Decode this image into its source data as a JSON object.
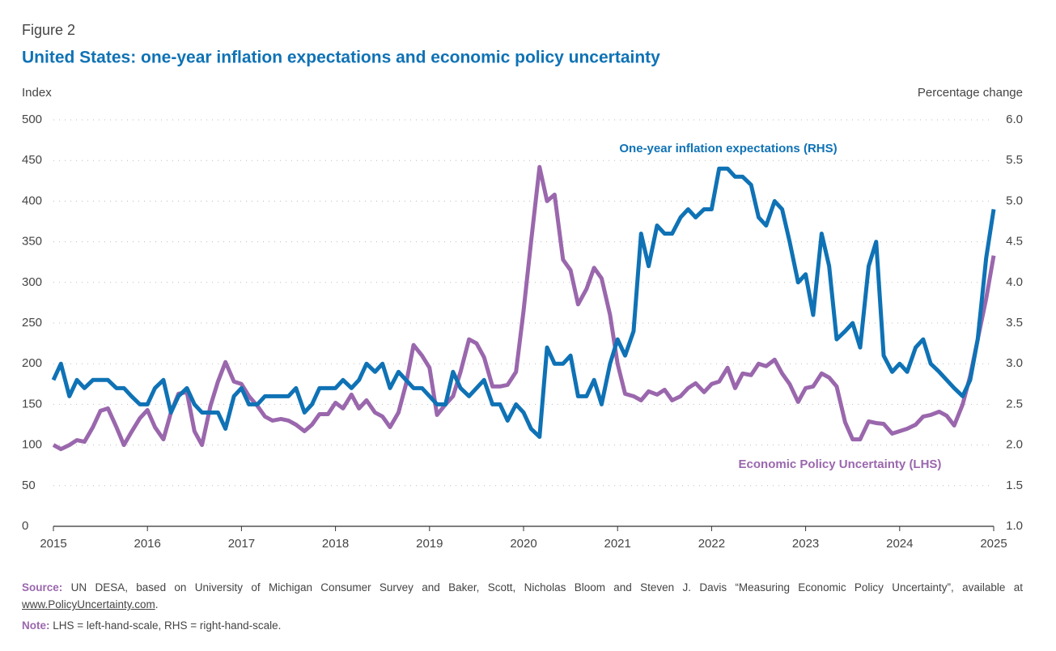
{
  "chart_data": {
    "type": "line",
    "figure_label": "Figure 2",
    "title": "United States: one-year inflation expectations and economic policy uncertainty",
    "ylabel": "Index",
    "y2label": "Percentage change",
    "xlim": [
      2015,
      2025
    ],
    "xticks": [
      2015,
      2016,
      2017,
      2018,
      2019,
      2020,
      2021,
      2022,
      2023,
      2024,
      2025
    ],
    "ylim": [
      0,
      500
    ],
    "yticks": [
      0,
      50,
      100,
      150,
      200,
      250,
      300,
      350,
      400,
      450,
      500
    ],
    "y2lim": [
      1,
      6
    ],
    "y2ticks": [
      {
        "value": 1,
        "label": "1.0"
      },
      {
        "value": 1.5,
        "label": "1.5"
      },
      {
        "value": 2,
        "label": "2.0"
      },
      {
        "value": 2.5,
        "label": "2.5"
      },
      {
        "value": 3,
        "label": "3.0"
      },
      {
        "value": 3.5,
        "label": "3.5"
      },
      {
        "value": 4,
        "label": "4.0"
      },
      {
        "value": 4.5,
        "label": "4.5"
      },
      {
        "value": 5,
        "label": "5.0"
      },
      {
        "value": 5.5,
        "label": "5.5"
      },
      {
        "value": 6,
        "label": "6.0"
      }
    ],
    "grid": true,
    "x": [
      2015,
      2015.08,
      2015.17,
      2015.25,
      2015.33,
      2015.42,
      2015.5,
      2015.58,
      2015.67,
      2015.75,
      2015.83,
      2015.92,
      2016,
      2016.08,
      2016.17,
      2016.25,
      2016.33,
      2016.42,
      2016.5,
      2016.58,
      2016.67,
      2016.75,
      2016.83,
      2016.92,
      2017,
      2017.08,
      2017.17,
      2017.25,
      2017.33,
      2017.42,
      2017.5,
      2017.58,
      2017.67,
      2017.75,
      2017.83,
      2017.92,
      2018,
      2018.08,
      2018.17,
      2018.25,
      2018.33,
      2018.42,
      2018.5,
      2018.58,
      2018.67,
      2018.75,
      2018.83,
      2018.92,
      2019,
      2019.08,
      2019.17,
      2019.25,
      2019.33,
      2019.42,
      2019.5,
      2019.58,
      2019.67,
      2019.75,
      2019.83,
      2019.92,
      2020,
      2020.08,
      2020.17,
      2020.25,
      2020.33,
      2020.42,
      2020.5,
      2020.58,
      2020.67,
      2020.75,
      2020.83,
      2020.92,
      2021,
      2021.08,
      2021.17,
      2021.25,
      2021.33,
      2021.42,
      2021.5,
      2021.58,
      2021.67,
      2021.75,
      2021.83,
      2021.92,
      2022,
      2022.08,
      2022.17,
      2022.25,
      2022.33,
      2022.42,
      2022.5,
      2022.58,
      2022.67,
      2022.75,
      2022.83,
      2022.92,
      2023,
      2023.08,
      2023.17,
      2023.25,
      2023.33,
      2023.42,
      2023.5,
      2023.58,
      2023.67,
      2023.75,
      2023.83,
      2023.92,
      2024,
      2024.08,
      2024.17,
      2024.25,
      2024.33,
      2024.42,
      2024.5,
      2024.58,
      2024.67,
      2024.75,
      2024.83,
      2024.92,
      2025
    ],
    "series": [
      {
        "name": "One-year inflation expectations (RHS)",
        "color": "#0f72b5",
        "axis": "y2",
        "values": [
          2.8,
          3.0,
          2.6,
          2.8,
          2.7,
          2.8,
          2.8,
          2.8,
          2.7,
          2.7,
          2.6,
          2.5,
          2.5,
          2.7,
          2.8,
          2.4,
          2.6,
          2.7,
          2.5,
          2.4,
          2.4,
          2.4,
          2.2,
          2.6,
          2.7,
          2.5,
          2.5,
          2.6,
          2.6,
          2.6,
          2.6,
          2.7,
          2.4,
          2.5,
          2.7,
          2.7,
          2.7,
          2.8,
          2.7,
          2.8,
          3.0,
          2.9,
          3.0,
          2.7,
          2.9,
          2.8,
          2.7,
          2.7,
          2.6,
          2.5,
          2.5,
          2.9,
          2.7,
          2.6,
          2.7,
          2.8,
          2.5,
          2.5,
          2.3,
          2.5,
          2.4,
          2.2,
          2.1,
          3.2,
          3.0,
          3.0,
          3.1,
          2.6,
          2.6,
          2.8,
          2.5,
          3.0,
          3.3,
          3.1,
          3.4,
          4.6,
          4.2,
          4.7,
          4.6,
          4.6,
          4.8,
          4.9,
          4.8,
          4.9,
          4.9,
          5.4,
          5.4,
          5.3,
          5.3,
          5.2,
          4.8,
          4.7,
          5.0,
          4.9,
          4.5,
          4.0,
          4.1,
          3.6,
          4.6,
          4.2,
          3.3,
          3.4,
          3.5,
          3.2,
          4.2,
          4.5,
          3.1,
          2.9,
          3.0,
          2.9,
          3.2,
          3.3,
          3.0,
          2.9,
          2.8,
          2.7,
          2.6,
          2.8,
          3.3,
          4.3,
          4.9
        ]
      },
      {
        "name": "Economic Policy Uncertainty (LHS)",
        "color": "#9a67ad",
        "values": [
          100,
          95,
          100,
          106,
          104,
          122,
          142,
          145,
          122,
          100,
          116,
          133,
          143,
          122,
          107,
          140,
          163,
          165,
          117,
          100,
          148,
          178,
          202,
          178,
          175,
          160,
          148,
          135,
          130,
          132,
          130,
          125,
          117,
          125,
          138,
          138,
          152,
          145,
          162,
          145,
          155,
          140,
          135,
          122,
          140,
          175,
          223,
          210,
          195,
          137,
          150,
          160,
          190,
          230,
          225,
          208,
          172,
          172,
          174,
          190,
          265,
          350,
          442,
          400,
          408,
          328,
          315,
          273,
          292,
          318,
          305,
          260,
          200,
          163,
          160,
          155,
          166,
          162,
          168,
          155,
          160,
          170,
          176,
          165,
          175,
          178,
          195,
          170,
          188,
          186,
          200,
          197,
          205,
          188,
          175,
          153,
          170,
          172,
          188,
          183,
          172,
          128,
          107,
          107,
          129,
          127,
          126,
          114,
          117,
          120,
          125,
          135,
          137,
          141,
          136,
          124,
          150,
          185,
          230,
          280,
          333
        ]
      }
    ],
    "source_label": "Source:",
    "source_text": "UN DESA, based on University of Michigan Consumer Survey and Baker, Scott, Nicholas Bloom and Steven J. Davis “Measuring Economic Policy Uncertainty”, available at",
    "source_link": "www.PolicyUncertainty.com",
    "note_label": "Note:",
    "note_text": "LHS = left-hand-scale, RHS = right-hand-scale."
  }
}
